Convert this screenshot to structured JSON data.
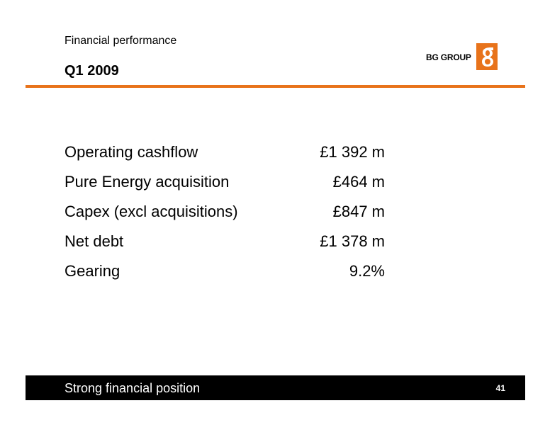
{
  "header": {
    "subtitle": "Financial performance",
    "title": "Q1 2009",
    "logo_text": "BG GROUP",
    "accent_color": "#e8731b"
  },
  "metrics": [
    {
      "label": "Operating cashflow",
      "value": "£1 392 m"
    },
    {
      "label": "Pure Energy acquisition",
      "value": "£464 m"
    },
    {
      "label": "Capex (excl acquisitions)",
      "value": "£847 m"
    },
    {
      "label": "Net debt",
      "value": "£1 378 m"
    },
    {
      "label": "Gearing",
      "value": "9.2%"
    }
  ],
  "footer": {
    "text": "Strong financial position",
    "page_number": "41"
  }
}
